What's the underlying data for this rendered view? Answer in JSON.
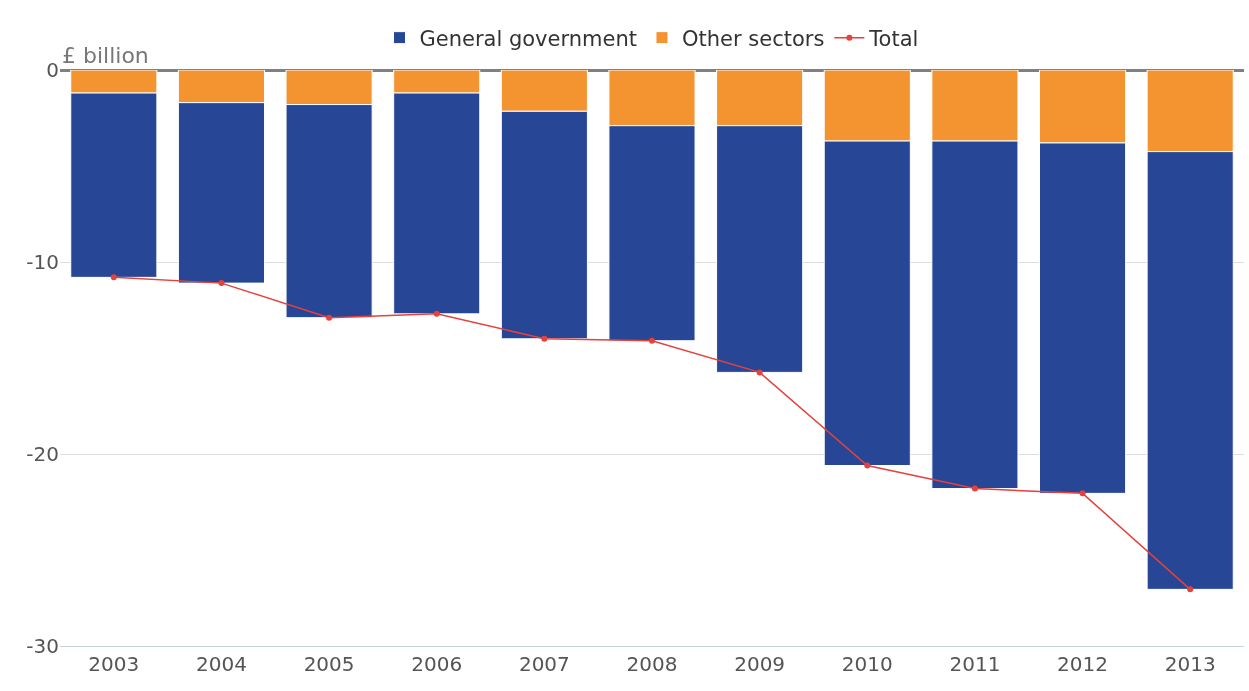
{
  "chart_data": {
    "type": "bar",
    "stacked": true,
    "ylabel": "£ billion",
    "categories": [
      "2003",
      "2004",
      "2005",
      "2006",
      "2007",
      "2008",
      "2009",
      "2010",
      "2011",
      "2012",
      "2013"
    ],
    "series": [
      {
        "name": "Other sectors",
        "color": "#f39431",
        "values": [
          -1.2,
          -1.7,
          -1.8,
          -1.2,
          -2.15,
          -2.9,
          -2.9,
          -3.7,
          -3.7,
          -3.8,
          -4.25
        ]
      },
      {
        "name": "General government",
        "color": "#274796",
        "values": [
          -9.6,
          -9.4,
          -11.1,
          -11.5,
          -11.85,
          -11.2,
          -12.85,
          -16.9,
          -18.1,
          -18.25,
          -22.8
        ]
      },
      {
        "name": "Total",
        "type": "line",
        "color": "#e5413d",
        "marker": "circle",
        "values": [
          -10.8,
          -11.1,
          -12.9,
          -12.7,
          -14.0,
          -14.1,
          -15.75,
          -20.6,
          -21.8,
          -22.05,
          -27.05
        ]
      }
    ],
    "ylim": [
      -30,
      0
    ],
    "yticks": [
      -30,
      -20,
      -10,
      0
    ],
    "grid": "y",
    "legend": "top"
  }
}
